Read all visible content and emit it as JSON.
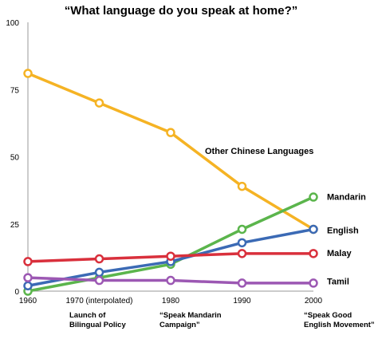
{
  "chart_data": {
    "type": "line",
    "title": "“What language do you speak at home?”",
    "xlabel": "",
    "ylabel": "",
    "ylim": [
      0,
      100
    ],
    "y_ticks": [
      "0",
      "25",
      "50",
      "75",
      "100"
    ],
    "x": [
      1960,
      1970,
      1980,
      1990,
      2000
    ],
    "x_tick_labels": [
      "1960",
      "1970 (interpolated)",
      "1980",
      "1990",
      "2000"
    ],
    "grid": false,
    "series": [
      {
        "name": "Other Chinese Languages",
        "color": "#f5b324",
        "values": [
          81,
          70,
          59,
          39,
          23
        ]
      },
      {
        "name": "Mandarin",
        "color": "#5bb54c",
        "values": [
          0,
          5,
          10,
          23,
          35
        ]
      },
      {
        "name": "English",
        "color": "#3b6ab5",
        "values": [
          2,
          7,
          11,
          18,
          23
        ]
      },
      {
        "name": "Malay",
        "color": "#d9303c",
        "values": [
          11,
          12,
          13,
          14,
          14
        ]
      },
      {
        "name": "Tamil",
        "color": "#9c58b3",
        "values": [
          5,
          4,
          4,
          3,
          3
        ]
      }
    ],
    "annotations": [
      {
        "x": 1970,
        "lines": [
          "Launch of",
          "Bilingual Policy"
        ]
      },
      {
        "x": 1980,
        "lines": [
          "“Speak Mandarin",
          "Campaign”"
        ]
      },
      {
        "x": 2000,
        "lines": [
          "“Speak Good",
          "English Movement”"
        ]
      }
    ]
  }
}
